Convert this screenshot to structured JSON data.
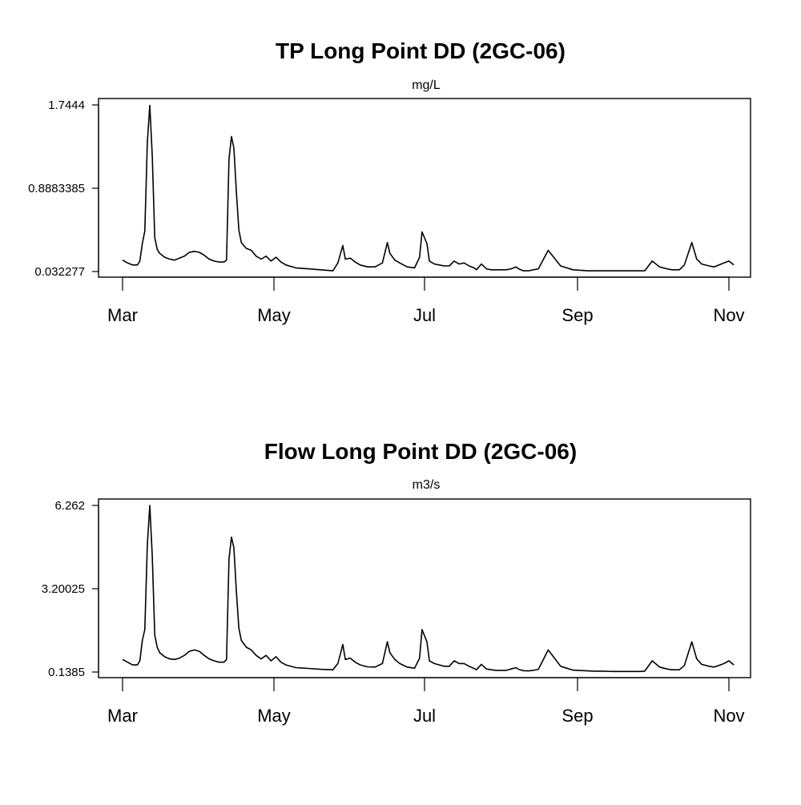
{
  "chart_data": [
    {
      "type": "line",
      "title": "TP Long Point DD (2GC-06)",
      "subtitle": "mg/L",
      "xlabel": "",
      "ylabel": "",
      "yticks": [
        "1.7444",
        "0.8883385",
        "0.032277"
      ],
      "ylim": [
        0.032277,
        1.7444
      ],
      "xticks": [
        "Mar",
        "May",
        "Jul",
        "Sep",
        "Nov"
      ],
      "xlim": [
        "2000-03-01",
        "2000-11-06"
      ],
      "series": [
        {
          "x": [
            "2000-03-01",
            "2000-03-03",
            "2000-03-05",
            "2000-03-07",
            "2000-03-08",
            "2000-03-09",
            "2000-03-10",
            "2000-03-11",
            "2000-03-12",
            "2000-03-13",
            "2000-03-14",
            "2000-03-15",
            "2000-03-16",
            "2000-03-18",
            "2000-03-20",
            "2000-03-22",
            "2000-03-24",
            "2000-03-26",
            "2000-03-28",
            "2000-03-30",
            "2000-04-01",
            "2000-04-03",
            "2000-04-05",
            "2000-04-07",
            "2000-04-09",
            "2000-04-11",
            "2000-04-12",
            "2000-04-13",
            "2000-04-14",
            "2000-04-15",
            "2000-04-16",
            "2000-04-17",
            "2000-04-18",
            "2000-04-20",
            "2000-04-22",
            "2000-04-24",
            "2000-04-26",
            "2000-04-28",
            "2000-04-30",
            "2000-05-02",
            "2000-05-04",
            "2000-05-06",
            "2000-05-10",
            "2000-05-15",
            "2000-05-20",
            "2000-05-25",
            "2000-05-27",
            "2000-05-29",
            "2000-05-30",
            "2000-06-01",
            "2000-06-03",
            "2000-06-05",
            "2000-06-08",
            "2000-06-11",
            "2000-06-14",
            "2000-06-16",
            "2000-06-17",
            "2000-06-19",
            "2000-06-21",
            "2000-06-24",
            "2000-06-27",
            "2000-06-29",
            "2000-06-30",
            "2000-07-02",
            "2000-07-03",
            "2000-07-05",
            "2000-07-07",
            "2000-07-09",
            "2000-07-11",
            "2000-07-13",
            "2000-07-15",
            "2000-07-17",
            "2000-07-19",
            "2000-07-21",
            "2000-07-22",
            "2000-07-24",
            "2000-07-26",
            "2000-07-28",
            "2000-07-30",
            "2000-08-01",
            "2000-08-03",
            "2000-08-05",
            "2000-08-07",
            "2000-08-08",
            "2000-08-10",
            "2000-08-12",
            "2000-08-14",
            "2000-08-16",
            "2000-08-20",
            "2000-08-25",
            "2000-08-30",
            "2000-09-05",
            "2000-09-08",
            "2000-09-11",
            "2000-09-15",
            "2000-09-20",
            "2000-09-24",
            "2000-09-26",
            "2000-09-28",
            "2000-10-01",
            "2000-10-04",
            "2000-10-07",
            "2000-10-09",
            "2000-10-10",
            "2000-10-12",
            "2000-10-14",
            "2000-10-17",
            "2000-10-19",
            "2000-10-21",
            "2000-10-24",
            "2000-10-26",
            "2000-10-28",
            "2000-10-30",
            "2000-11-01",
            "2000-11-03"
          ],
          "values": [
            0.15,
            0.12,
            0.1,
            0.1,
            0.14,
            0.32,
            0.45,
            1.35,
            1.74,
            1.22,
            0.38,
            0.26,
            0.22,
            0.18,
            0.16,
            0.15,
            0.17,
            0.19,
            0.23,
            0.24,
            0.23,
            0.2,
            0.16,
            0.14,
            0.13,
            0.13,
            0.15,
            1.19,
            1.42,
            1.3,
            0.85,
            0.46,
            0.33,
            0.27,
            0.25,
            0.19,
            0.16,
            0.19,
            0.14,
            0.18,
            0.13,
            0.1,
            0.07,
            0.06,
            0.05,
            0.04,
            0.12,
            0.3,
            0.16,
            0.17,
            0.13,
            0.1,
            0.08,
            0.08,
            0.12,
            0.33,
            0.22,
            0.15,
            0.12,
            0.08,
            0.07,
            0.18,
            0.44,
            0.32,
            0.14,
            0.11,
            0.1,
            0.09,
            0.09,
            0.14,
            0.11,
            0.12,
            0.09,
            0.07,
            0.05,
            0.11,
            0.06,
            0.05,
            0.05,
            0.05,
            0.05,
            0.06,
            0.08,
            0.06,
            0.04,
            0.04,
            0.05,
            0.06,
            0.25,
            0.09,
            0.05,
            0.04,
            0.04,
            0.04,
            0.04,
            0.04,
            0.04,
            0.04,
            0.04,
            0.14,
            0.08,
            0.06,
            0.05,
            0.05,
            0.05,
            0.1,
            0.33,
            0.16,
            0.11,
            0.09,
            0.08,
            0.1,
            0.12,
            0.14,
            0.1
          ]
        }
      ]
    },
    {
      "type": "line",
      "title": "Flow Long Point DD (2GC-06)",
      "subtitle": "m3/s",
      "xlabel": "",
      "ylabel": "",
      "yticks": [
        "6.262",
        "3.20025",
        "0.1385"
      ],
      "ylim": [
        0.1385,
        6.262
      ],
      "xticks": [
        "Mar",
        "May",
        "Jul",
        "Sep",
        "Nov"
      ],
      "xlim": [
        "2000-03-01",
        "2000-11-06"
      ],
      "series": [
        {
          "x": [
            "2000-03-01",
            "2000-03-03",
            "2000-03-05",
            "2000-03-07",
            "2000-03-08",
            "2000-03-09",
            "2000-03-10",
            "2000-03-11",
            "2000-03-12",
            "2000-03-13",
            "2000-03-14",
            "2000-03-15",
            "2000-03-16",
            "2000-03-18",
            "2000-03-20",
            "2000-03-22",
            "2000-03-24",
            "2000-03-26",
            "2000-03-28",
            "2000-03-30",
            "2000-04-01",
            "2000-04-03",
            "2000-04-05",
            "2000-04-07",
            "2000-04-09",
            "2000-04-11",
            "2000-04-12",
            "2000-04-13",
            "2000-04-14",
            "2000-04-15",
            "2000-04-16",
            "2000-04-17",
            "2000-04-18",
            "2000-04-20",
            "2000-04-22",
            "2000-04-24",
            "2000-04-26",
            "2000-04-28",
            "2000-04-30",
            "2000-05-02",
            "2000-05-04",
            "2000-05-06",
            "2000-05-10",
            "2000-05-15",
            "2000-05-20",
            "2000-05-25",
            "2000-05-27",
            "2000-05-29",
            "2000-05-30",
            "2000-06-01",
            "2000-06-03",
            "2000-06-05",
            "2000-06-08",
            "2000-06-11",
            "2000-06-14",
            "2000-06-16",
            "2000-06-17",
            "2000-06-19",
            "2000-06-21",
            "2000-06-24",
            "2000-06-27",
            "2000-06-29",
            "2000-06-30",
            "2000-07-02",
            "2000-07-03",
            "2000-07-05",
            "2000-07-07",
            "2000-07-09",
            "2000-07-11",
            "2000-07-13",
            "2000-07-15",
            "2000-07-17",
            "2000-07-19",
            "2000-07-21",
            "2000-07-22",
            "2000-07-24",
            "2000-07-26",
            "2000-07-28",
            "2000-07-30",
            "2000-08-01",
            "2000-08-03",
            "2000-08-05",
            "2000-08-07",
            "2000-08-08",
            "2000-08-10",
            "2000-08-12",
            "2000-08-14",
            "2000-08-16",
            "2000-08-20",
            "2000-08-25",
            "2000-08-30",
            "2000-09-05",
            "2000-09-08",
            "2000-09-11",
            "2000-09-15",
            "2000-09-20",
            "2000-09-24",
            "2000-09-26",
            "2000-09-28",
            "2000-10-01",
            "2000-10-04",
            "2000-10-07",
            "2000-10-09",
            "2000-10-10",
            "2000-10-12",
            "2000-10-14",
            "2000-10-17",
            "2000-10-19",
            "2000-10-21",
            "2000-10-24",
            "2000-10-26",
            "2000-10-28",
            "2000-10-30",
            "2000-11-01",
            "2000-11-03"
          ],
          "values": [
            0.6,
            0.5,
            0.4,
            0.4,
            0.55,
            1.3,
            1.7,
            4.8,
            6.26,
            4.4,
            1.5,
            1.05,
            0.85,
            0.7,
            0.62,
            0.6,
            0.65,
            0.75,
            0.9,
            0.95,
            0.9,
            0.75,
            0.62,
            0.55,
            0.5,
            0.5,
            0.6,
            4.3,
            5.1,
            4.7,
            3.1,
            1.75,
            1.3,
            1.05,
            0.95,
            0.75,
            0.62,
            0.75,
            0.55,
            0.7,
            0.5,
            0.4,
            0.3,
            0.27,
            0.24,
            0.22,
            0.45,
            1.15,
            0.6,
            0.65,
            0.5,
            0.4,
            0.33,
            0.32,
            0.45,
            1.25,
            0.85,
            0.6,
            0.45,
            0.32,
            0.28,
            0.65,
            1.7,
            1.25,
            0.55,
            0.45,
            0.4,
            0.35,
            0.35,
            0.55,
            0.45,
            0.45,
            0.35,
            0.27,
            0.22,
            0.42,
            0.25,
            0.22,
            0.2,
            0.2,
            0.2,
            0.25,
            0.3,
            0.24,
            0.19,
            0.18,
            0.2,
            0.24,
            0.95,
            0.35,
            0.21,
            0.18,
            0.17,
            0.17,
            0.16,
            0.16,
            0.16,
            0.16,
            0.17,
            0.55,
            0.32,
            0.25,
            0.22,
            0.22,
            0.22,
            0.38,
            1.25,
            0.62,
            0.42,
            0.35,
            0.32,
            0.38,
            0.45,
            0.55,
            0.4
          ]
        }
      ]
    }
  ]
}
